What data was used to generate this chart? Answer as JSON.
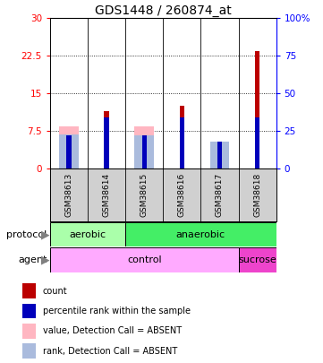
{
  "title": "GDS1448 / 260874_at",
  "samples": [
    "GSM38613",
    "GSM38614",
    "GSM38615",
    "GSM38616",
    "GSM38617",
    "GSM38618"
  ],
  "left_ylim": [
    0,
    30
  ],
  "right_ylim": [
    0,
    100
  ],
  "left_yticks": [
    0,
    7.5,
    15,
    22.5,
    30
  ],
  "right_yticks": [
    0,
    25,
    50,
    75,
    100
  ],
  "left_yticklabels": [
    "0",
    "7.5",
    "15",
    "22.5",
    "30"
  ],
  "right_yticklabels": [
    "0",
    "25",
    "50",
    "75",
    "100%"
  ],
  "count_values": [
    0.3,
    11.5,
    0.3,
    12.5,
    0.3,
    23.5
  ],
  "rank_values_pct": [
    22,
    34,
    22,
    34,
    18,
    34
  ],
  "absent_value_bars": [
    8.5,
    0.0,
    8.5,
    0.0,
    3.5,
    0.0
  ],
  "absent_rank_bars_pct": [
    23,
    0,
    22,
    0,
    18,
    0
  ],
  "count_color": "#bb0000",
  "rank_color": "#0000bb",
  "absent_value_color": "#ffb6c1",
  "absent_rank_color": "#aabbdd",
  "protocol_data": [
    [
      "aerobic",
      0,
      2,
      "#aaffaa"
    ],
    [
      "anaerobic",
      2,
      6,
      "#44ee66"
    ]
  ],
  "agent_data": [
    [
      "control",
      0,
      5,
      "#ffaaff"
    ],
    [
      "sucrose",
      5,
      6,
      "#ee44cc"
    ]
  ],
  "legend_items": [
    {
      "color": "#bb0000",
      "label": "count",
      "marker": "s"
    },
    {
      "color": "#0000bb",
      "label": "percentile rank within the sample",
      "marker": "s"
    },
    {
      "color": "#ffb6c1",
      "label": "value, Detection Call = ABSENT",
      "marker": "s"
    },
    {
      "color": "#aabbdd",
      "label": "rank, Detection Call = ABSENT",
      "marker": "s"
    }
  ],
  "bg_color": "#ffffff",
  "title_fontsize": 10,
  "tick_fontsize": 7.5,
  "row_label_fontsize": 8,
  "sample_fontsize": 6.5,
  "legend_fontsize": 7
}
